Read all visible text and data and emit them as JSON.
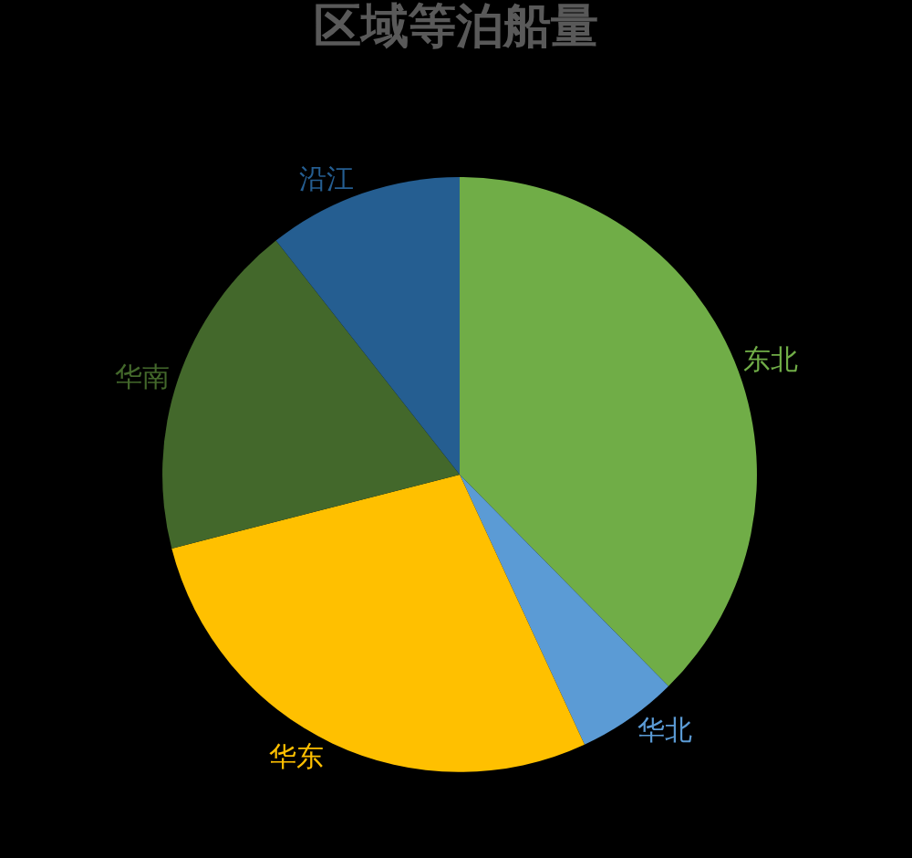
{
  "chart_data": {
    "type": "pie",
    "title": "区域等泊船量",
    "categories": [
      "东北",
      "华北",
      "华东",
      "华南",
      "沿江"
    ],
    "values": [
      37.6,
      5.5,
      27.9,
      18.4,
      10.6
    ],
    "colors": [
      "#70ad47",
      "#5b9bd5",
      "#ffc000",
      "#43682b",
      "#255e91"
    ]
  }
}
